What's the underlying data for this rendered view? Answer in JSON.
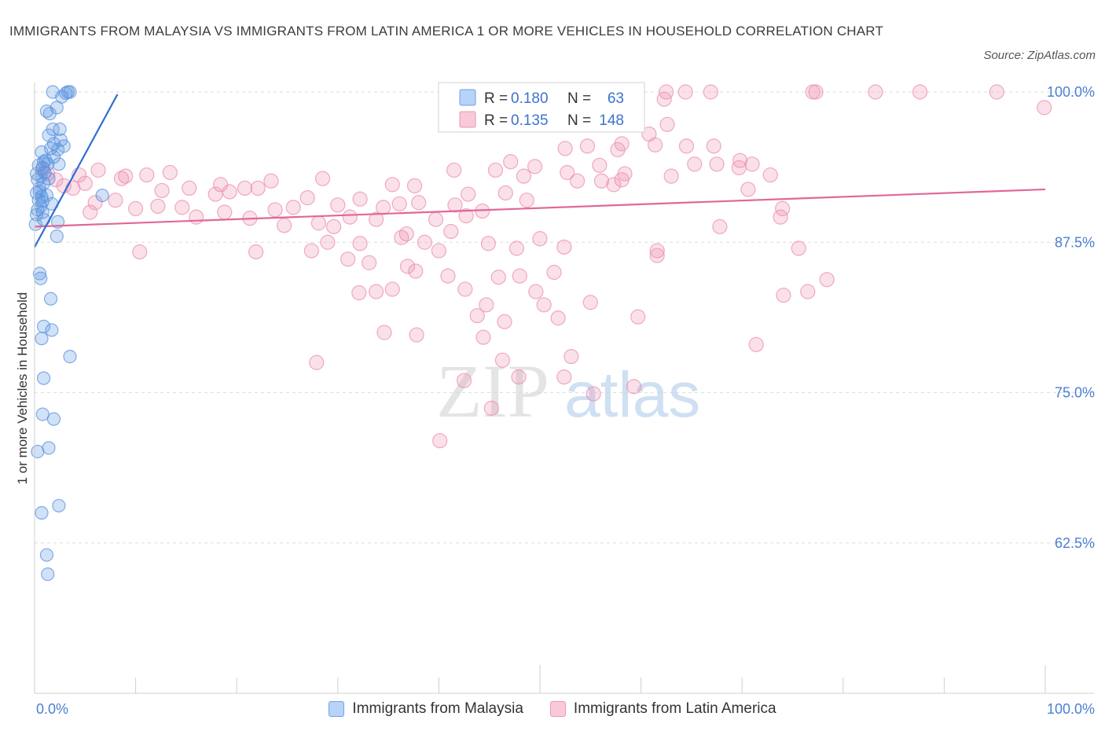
{
  "header": {
    "title": "IMMIGRANTS FROM MALAYSIA VS IMMIGRANTS FROM LATIN AMERICA 1 OR MORE VEHICLES IN HOUSEHOLD CORRELATION CHART",
    "source": "Source: ZipAtlas.com"
  },
  "legend_top": {
    "r_label": "R =",
    "n_label": "N =",
    "rows": [
      {
        "r": "0.180",
        "n": "63"
      },
      {
        "r": "0.135",
        "n": "148"
      }
    ]
  },
  "legend_bottom": {
    "items": [
      "Immigrants from Malaysia",
      "Immigrants from Latin America"
    ]
  },
  "watermark": {
    "zip": "ZIP",
    "atlas": "atlas"
  },
  "chart_data": {
    "type": "scatter",
    "title": "IMMIGRANTS FROM MALAYSIA VS IMMIGRANTS FROM LATIN AMERICA 1 OR MORE VEHICLES IN HOUSEHOLD CORRELATION CHART",
    "xlabel": "",
    "ylabel": "1 or more Vehicles in Household",
    "xlim": [
      0,
      100
    ],
    "ylim": [
      50,
      100
    ],
    "x_tick_labels": [
      "0.0%",
      "100.0%"
    ],
    "y_ticks": [
      100,
      87.5,
      75,
      62.5
    ],
    "y_tick_labels": [
      "100.0%",
      "87.5%",
      "75.0%",
      "62.5%"
    ],
    "grid": true,
    "legend_position": "top-center",
    "colors": {
      "blue": "#5b94e0",
      "pink": "#ec8fb0",
      "blue_line": "#2f6fd0",
      "pink_line": "#e0679a",
      "tick_text": "#4a7fd4"
    },
    "series": [
      {
        "name": "Immigrants from Malaysia",
        "color": "blue",
        "R": 0.18,
        "N": 63,
        "trend": {
          "x": [
            0,
            8.2
          ],
          "y": [
            87.1,
            99.8
          ]
        },
        "points": [
          [
            1.8,
            100
          ],
          [
            2.7,
            99.6
          ],
          [
            3.3,
            100
          ],
          [
            3.5,
            100
          ],
          [
            2.2,
            98.7
          ],
          [
            1.2,
            98.4
          ],
          [
            1.5,
            98.2
          ],
          [
            2.5,
            96.9
          ],
          [
            1.8,
            96.9
          ],
          [
            1.4,
            96.4
          ],
          [
            2.6,
            96.0
          ],
          [
            1.9,
            95.7
          ],
          [
            1.6,
            95.3
          ],
          [
            2.3,
            95.2
          ],
          [
            0.7,
            95.0
          ],
          [
            1.9,
            94.6
          ],
          [
            0.9,
            94.2
          ],
          [
            2.4,
            94.0
          ],
          [
            1.3,
            94.0
          ],
          [
            0.4,
            93.9
          ],
          [
            0.8,
            93.7
          ],
          [
            1.0,
            93.3
          ],
          [
            0.6,
            93.0
          ],
          [
            0.3,
            92.7
          ],
          [
            0.9,
            92.4
          ],
          [
            0.5,
            92.0
          ],
          [
            0.2,
            91.6
          ],
          [
            1.2,
            91.4
          ],
          [
            0.7,
            91.3
          ],
          [
            6.7,
            91.4
          ],
          [
            0.4,
            91.0
          ],
          [
            1.7,
            90.7
          ],
          [
            0.6,
            90.5
          ],
          [
            0.3,
            90.2
          ],
          [
            0.8,
            90.0
          ],
          [
            0.2,
            89.8
          ],
          [
            0.9,
            89.4
          ],
          [
            2.3,
            89.2
          ],
          [
            0.1,
            89.0
          ],
          [
            2.2,
            88.0
          ],
          [
            0.5,
            84.9
          ],
          [
            0.6,
            84.5
          ],
          [
            1.6,
            82.8
          ],
          [
            0.9,
            80.5
          ],
          [
            1.7,
            80.2
          ],
          [
            0.7,
            79.5
          ],
          [
            3.5,
            78.0
          ],
          [
            0.9,
            76.2
          ],
          [
            0.8,
            73.2
          ],
          [
            1.9,
            72.8
          ],
          [
            1.4,
            70.4
          ],
          [
            0.3,
            70.1
          ],
          [
            2.4,
            65.6
          ],
          [
            0.7,
            65.0
          ],
          [
            1.2,
            61.5
          ],
          [
            1.3,
            59.9
          ],
          [
            3.1,
            99.9
          ],
          [
            2.9,
            95.5
          ],
          [
            1.1,
            94.3
          ],
          [
            0.2,
            93.2
          ],
          [
            0.5,
            91.7
          ],
          [
            1.4,
            92.8
          ],
          [
            0.8,
            90.9
          ]
        ]
      },
      {
        "name": "Immigrants from Latin America",
        "color": "pink",
        "R": 0.135,
        "N": 148,
        "trend": {
          "x": [
            0,
            100
          ],
          "y": [
            88.8,
            91.9
          ]
        },
        "points": [
          [
            62.5,
            100
          ],
          [
            64.4,
            100
          ],
          [
            66.9,
            100
          ],
          [
            77.0,
            100
          ],
          [
            77.3,
            100
          ],
          [
            83.2,
            100
          ],
          [
            87.6,
            100
          ],
          [
            95.2,
            100
          ],
          [
            62.3,
            99.4
          ],
          [
            99.9,
            98.7
          ],
          [
            62.6,
            97.3
          ],
          [
            60.8,
            96.5
          ],
          [
            52.5,
            95.3
          ],
          [
            58.1,
            95.7
          ],
          [
            61.4,
            95.6
          ],
          [
            64.5,
            95.5
          ],
          [
            67.2,
            95.5
          ],
          [
            54.7,
            95.5
          ],
          [
            57.7,
            95.2
          ],
          [
            65.3,
            94.0
          ],
          [
            69.8,
            94.3
          ],
          [
            67.5,
            94.0
          ],
          [
            71.0,
            94.0
          ],
          [
            47.1,
            94.2
          ],
          [
            49.5,
            93.8
          ],
          [
            55.9,
            93.9
          ],
          [
            58.4,
            93.2
          ],
          [
            45.6,
            93.5
          ],
          [
            41.5,
            93.5
          ],
          [
            48.4,
            93.0
          ],
          [
            52.7,
            93.3
          ],
          [
            58.1,
            92.7
          ],
          [
            63.0,
            93.0
          ],
          [
            69.7,
            93.7
          ],
          [
            72.8,
            93.1
          ],
          [
            56.1,
            92.6
          ],
          [
            53.7,
            92.6
          ],
          [
            57.3,
            92.3
          ],
          [
            37.6,
            92.2
          ],
          [
            35.4,
            92.3
          ],
          [
            28.5,
            92.8
          ],
          [
            23.4,
            92.6
          ],
          [
            20.8,
            92.0
          ],
          [
            18.4,
            92.3
          ],
          [
            13.4,
            93.3
          ],
          [
            11.1,
            93.1
          ],
          [
            8.6,
            92.8
          ],
          [
            6.3,
            93.5
          ],
          [
            5.0,
            92.4
          ],
          [
            4.4,
            93.1
          ],
          [
            3.8,
            92.0
          ],
          [
            2.9,
            92.2
          ],
          [
            2.1,
            92.7
          ],
          [
            1.3,
            93.2
          ],
          [
            0.8,
            93.6
          ],
          [
            9.0,
            93.0
          ],
          [
            12.6,
            91.8
          ],
          [
            15.3,
            92.0
          ],
          [
            17.9,
            91.5
          ],
          [
            19.3,
            91.7
          ],
          [
            22.1,
            92.0
          ],
          [
            27.0,
            91.2
          ],
          [
            32.2,
            91.1
          ],
          [
            42.9,
            91.5
          ],
          [
            46.6,
            91.6
          ],
          [
            6.0,
            90.8
          ],
          [
            8.0,
            91.0
          ],
          [
            5.5,
            90.0
          ],
          [
            10.0,
            90.3
          ],
          [
            12.2,
            90.5
          ],
          [
            16.0,
            89.6
          ],
          [
            18.8,
            90.0
          ],
          [
            21.3,
            89.5
          ],
          [
            23.8,
            90.2
          ],
          [
            25.6,
            90.4
          ],
          [
            30.0,
            90.6
          ],
          [
            34.5,
            90.4
          ],
          [
            36.1,
            90.7
          ],
          [
            38.0,
            90.8
          ],
          [
            41.6,
            90.6
          ],
          [
            42.7,
            89.7
          ],
          [
            44.3,
            90.1
          ],
          [
            48.7,
            91.0
          ],
          [
            28.1,
            89.1
          ],
          [
            29.6,
            88.8
          ],
          [
            31.2,
            89.6
          ],
          [
            33.8,
            89.4
          ],
          [
            39.7,
            89.4
          ],
          [
            41.2,
            88.4
          ],
          [
            36.8,
            88.2
          ],
          [
            29.0,
            87.5
          ],
          [
            32.2,
            87.4
          ],
          [
            27.4,
            86.8
          ],
          [
            21.9,
            86.7
          ],
          [
            10.4,
            86.7
          ],
          [
            38.6,
            87.5
          ],
          [
            40.0,
            86.8
          ],
          [
            44.9,
            87.4
          ],
          [
            47.7,
            87.0
          ],
          [
            52.4,
            87.1
          ],
          [
            61.6,
            86.8
          ],
          [
            61.6,
            86.4
          ],
          [
            67.8,
            88.8
          ],
          [
            74.0,
            90.3
          ],
          [
            75.6,
            87.0
          ],
          [
            73.8,
            89.6
          ],
          [
            31.0,
            86.1
          ],
          [
            33.1,
            85.8
          ],
          [
            36.9,
            85.5
          ],
          [
            37.7,
            85.1
          ],
          [
            40.9,
            84.7
          ],
          [
            45.9,
            84.6
          ],
          [
            51.4,
            85.0
          ],
          [
            42.6,
            83.6
          ],
          [
            35.4,
            83.6
          ],
          [
            33.8,
            83.4
          ],
          [
            32.1,
            83.3
          ],
          [
            44.7,
            82.3
          ],
          [
            50.4,
            82.3
          ],
          [
            55.0,
            82.5
          ],
          [
            74.1,
            83.1
          ],
          [
            76.5,
            83.4
          ],
          [
            78.4,
            84.4
          ],
          [
            59.7,
            81.3
          ],
          [
            51.8,
            81.2
          ],
          [
            46.5,
            80.9
          ],
          [
            44.4,
            79.6
          ],
          [
            53.1,
            78.0
          ],
          [
            46.3,
            77.7
          ],
          [
            52.4,
            76.3
          ],
          [
            55.3,
            74.9
          ],
          [
            71.4,
            79.0
          ],
          [
            42.5,
            76.0
          ],
          [
            47.9,
            76.3
          ],
          [
            45.2,
            73.7
          ],
          [
            40.1,
            71.0
          ],
          [
            34.6,
            80.0
          ],
          [
            27.9,
            77.5
          ],
          [
            37.8,
            79.8
          ],
          [
            48.0,
            84.7
          ],
          [
            49.6,
            83.4
          ],
          [
            43.8,
            81.4
          ],
          [
            59.3,
            75.5
          ],
          [
            14.6,
            90.4
          ],
          [
            24.7,
            88.9
          ],
          [
            36.3,
            87.9
          ],
          [
            50.0,
            87.8
          ],
          [
            70.6,
            91.9
          ]
        ]
      }
    ]
  }
}
